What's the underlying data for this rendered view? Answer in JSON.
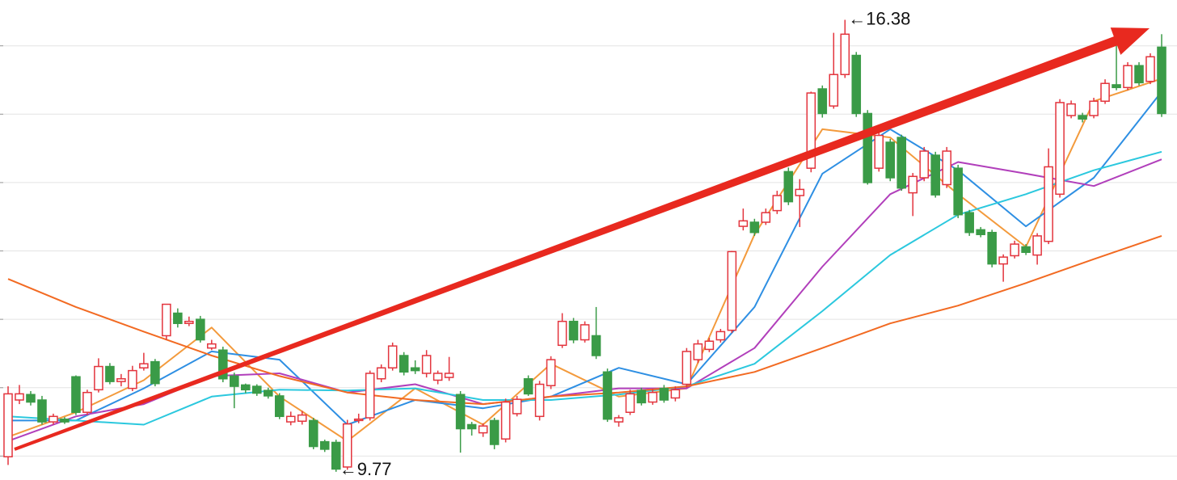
{
  "chart_data": {
    "type": "candlestick",
    "open": [
      9.99,
      10.82,
      10.9,
      10.82,
      10.5,
      10.54,
      11.16,
      10.64,
      10.97,
      11.31,
      11.09,
      10.99,
      11.29,
      11.38,
      11.76,
      12.09,
      11.94,
      12.0,
      11.58,
      11.55,
      11.17,
      11.04,
      11.02,
      10.96,
      10.88,
      10.5,
      10.51,
      10.52,
      10.21,
      10.2,
      9.84,
      10.52,
      10.56,
      11.13,
      11.29,
      11.47,
      11.29,
      11.21,
      11.11,
      11.15,
      10.9,
      10.46,
      10.34,
      10.52,
      10.25,
      10.62,
      11.13,
      10.58,
      11.03,
      11.62,
      11.97,
      11.7,
      11.76,
      11.23,
      10.5,
      10.64,
      10.96,
      10.79,
      10.99,
      10.85,
      11.05,
      11.41,
      11.56,
      11.7,
      11.84,
      13.36,
      13.42,
      13.42,
      13.59,
      14.16,
      13.81,
      14.21,
      15.37,
      15.12,
      15.58,
      15.86,
      15.01,
      14.21,
      14.59,
      14.66,
      13.85,
      14.07,
      14.4,
      13.97,
      14.21,
      13.56,
      13.31,
      13.27,
      12.81,
      12.93,
      13.06,
      12.94,
      13.14,
      13.83,
      14.98,
      14.98,
      14.98,
      15.19,
      15.43,
      15.39,
      15.71,
      15.48,
      15.98
    ],
    "high": [
      11.02,
      11.04,
      10.95,
      10.88,
      10.62,
      10.57,
      11.18,
      10.97,
      11.43,
      11.36,
      11.2,
      11.32,
      11.51,
      11.42,
      12.22,
      12.16,
      12.04,
      12.05,
      11.7,
      11.6,
      11.22,
      11.06,
      11.05,
      11.0,
      10.92,
      10.65,
      10.66,
      10.56,
      10.24,
      10.24,
      10.53,
      10.62,
      11.25,
      11.34,
      11.66,
      11.52,
      11.4,
      11.55,
      11.25,
      11.45,
      10.95,
      10.5,
      10.48,
      10.56,
      10.84,
      10.88,
      11.18,
      11.1,
      11.46,
      12.09,
      12.02,
      11.97,
      12.18,
      11.28,
      10.6,
      10.97,
      11.0,
      10.98,
      11.04,
      11.02,
      11.58,
      11.7,
      11.73,
      11.86,
      13.0,
      13.62,
      13.47,
      13.62,
      13.88,
      14.22,
      14.05,
      15.33,
      15.42,
      16.19,
      16.38,
      15.91,
      15.06,
      14.74,
      14.64,
      14.7,
      14.14,
      14.52,
      14.45,
      14.52,
      14.26,
      13.6,
      13.35,
      13.31,
      12.95,
      13.15,
      13.1,
      13.26,
      14.5,
      15.22,
      15.2,
      15.02,
      15.24,
      15.51,
      16.02,
      15.76,
      15.76,
      15.89,
      16.17
    ],
    "low": [
      9.87,
      10.76,
      10.74,
      10.46,
      10.46,
      10.47,
      10.6,
      10.6,
      10.93,
      11.05,
      11.02,
      10.95,
      11.25,
      11.02,
      11.7,
      11.88,
      11.9,
      11.66,
      11.55,
      11.08,
      10.7,
      10.92,
      10.88,
      10.84,
      10.54,
      10.45,
      10.46,
      10.1,
      10.06,
      9.77,
      9.8,
      10.48,
      10.52,
      11.08,
      11.25,
      11.18,
      11.2,
      11.15,
      11.05,
      11.1,
      10.05,
      10.3,
      10.28,
      10.1,
      10.2,
      10.58,
      10.88,
      10.52,
      10.98,
      11.58,
      11.65,
      11.66,
      11.42,
      10.5,
      10.43,
      10.6,
      10.74,
      10.75,
      10.78,
      10.8,
      11.0,
      11.36,
      11.52,
      11.66,
      11.8,
      13.3,
      13.22,
      13.38,
      13.54,
      13.67,
      13.35,
      14.15,
      14.95,
      15.08,
      15.53,
      14.96,
      13.97,
      14.16,
      14.02,
      13.88,
      13.51,
      14.02,
      13.78,
      13.92,
      13.48,
      13.22,
      13.2,
      12.76,
      12.55,
      12.89,
      12.94,
      12.8,
      13.1,
      13.78,
      14.94,
      14.88,
      14.94,
      15.15,
      15.35,
      15.35,
      15.42,
      15.44,
      14.96
    ],
    "close": [
      10.91,
      10.91,
      10.79,
      10.5,
      10.58,
      10.5,
      10.64,
      10.93,
      11.31,
      11.09,
      11.13,
      11.25,
      11.35,
      11.06,
      12.22,
      11.94,
      11.97,
      11.7,
      11.64,
      11.13,
      11.02,
      10.97,
      10.92,
      10.88,
      10.58,
      10.58,
      10.6,
      10.14,
      10.1,
      9.81,
      10.47,
      10.54,
      11.21,
      11.29,
      11.61,
      11.23,
      11.25,
      11.47,
      11.21,
      11.21,
      10.4,
      10.4,
      10.44,
      10.17,
      10.79,
      10.83,
      10.91,
      11.05,
      11.41,
      11.97,
      11.7,
      11.92,
      11.47,
      10.54,
      10.56,
      10.91,
      10.78,
      10.93,
      10.82,
      10.97,
      11.53,
      11.64,
      11.68,
      11.82,
      12.99,
      13.44,
      13.27,
      13.56,
      13.81,
      13.72,
      13.9,
      15.31,
      15.01,
      15.58,
      16.17,
      15.01,
      14.0,
      14.69,
      14.07,
      13.92,
      14.09,
      14.46,
      13.82,
      14.46,
      13.53,
      13.27,
      13.24,
      12.81,
      12.91,
      13.1,
      12.98,
      13.22,
      14.23,
      15.17,
      15.15,
      14.93,
      15.19,
      15.45,
      15.39,
      15.71,
      15.46,
      15.84,
      15.01
    ],
    "up_color": "#e3343d",
    "down_color": "#3a9b47",
    "lines": [
      {
        "color": "#f39a3c",
        "x": [
          0,
          6,
          12,
          18,
          24,
          30,
          36,
          42,
          48,
          54,
          60,
          66,
          72,
          78,
          84,
          90,
          96,
          102
        ],
        "values": [
          10.28,
          10.64,
          11.11,
          11.88,
          10.87,
          10.22,
          10.99,
          10.46,
          11.35,
          10.87,
          10.99,
          13.24,
          14.78,
          14.66,
          13.83,
          13.06,
          15.19,
          15.52
        ]
      },
      {
        "color": "#2e8fe3",
        "x": [
          0,
          6,
          12,
          18,
          24,
          30,
          36,
          42,
          48,
          54,
          60,
          66,
          72,
          78,
          84,
          90,
          96,
          102
        ],
        "values": [
          10.52,
          10.52,
          10.99,
          11.53,
          11.41,
          10.46,
          10.82,
          10.7,
          10.87,
          11.29,
          11.05,
          12.18,
          14.13,
          14.78,
          14.18,
          13.36,
          14.07,
          15.33
        ]
      },
      {
        "color": "#b13fbb",
        "x": [
          0,
          6,
          12,
          18,
          24,
          30,
          36,
          42,
          48,
          54,
          60,
          66,
          72,
          78,
          84,
          90,
          96,
          102
        ],
        "values": [
          10.22,
          10.58,
          10.76,
          11.17,
          11.21,
          10.93,
          11.05,
          10.76,
          10.87,
          10.99,
          10.99,
          11.58,
          12.77,
          13.83,
          14.3,
          14.13,
          13.95,
          14.34
        ]
      },
      {
        "color": "#2bc8de",
        "x": [
          0,
          6,
          12,
          18,
          24,
          30,
          36,
          42,
          48,
          54,
          60,
          66,
          72,
          78,
          84,
          90,
          96,
          102
        ],
        "values": [
          10.58,
          10.52,
          10.46,
          10.87,
          10.97,
          10.96,
          10.99,
          10.82,
          10.82,
          10.9,
          11.02,
          11.35,
          12.12,
          12.94,
          13.53,
          13.83,
          14.18,
          14.45
        ]
      },
      {
        "color": "#f26a22",
        "x": [
          0,
          6,
          12,
          18,
          24,
          30,
          36,
          42,
          48,
          54,
          60,
          66,
          72,
          78,
          84,
          90,
          96,
          102
        ],
        "values": [
          12.59,
          12.18,
          11.82,
          11.47,
          11.17,
          10.93,
          10.82,
          10.76,
          10.87,
          10.93,
          11.02,
          11.23,
          11.58,
          11.94,
          12.2,
          12.53,
          12.88,
          13.22
        ]
      }
    ],
    "annotations": {
      "max": "←16.38",
      "min": "←9.77"
    },
    "ylim": [
      9.65,
      16.67
    ],
    "yticks": [
      10,
      11,
      12,
      13,
      14,
      15,
      16
    ],
    "grid": true
  }
}
